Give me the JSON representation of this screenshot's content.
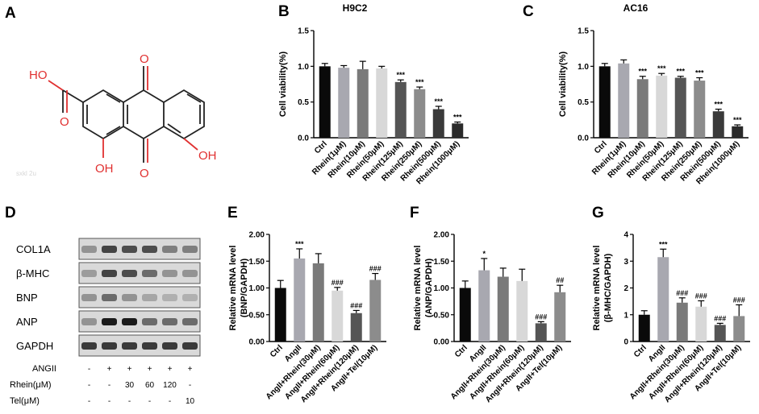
{
  "panel_letters": {
    "A": "A",
    "B": "B",
    "C": "C",
    "D": "D",
    "E": "E",
    "F": "F",
    "G": "G"
  },
  "colors": {
    "c0": "#0a0a0a",
    "c1": "#a8a8b0",
    "c2": "#7a7a7a",
    "c3": "#d8d8d8",
    "c4": "#555555",
    "c5": "#8c8c8c",
    "c6": "#3a3a3a",
    "c7": "#2a2a2a",
    "red": "#e03030",
    "bond": "#222222"
  },
  "structure": {
    "atoms": {
      "o_top": "O",
      "o_bot": "O",
      "ho_acid": "HO",
      "o_acid": "O",
      "oh_right": "OH",
      "oh_bottom": "OH"
    },
    "watermark": "sxkl 2u"
  },
  "western_blot": {
    "bands": [
      "COL1A",
      "β-MHC",
      "BNP",
      "ANP",
      "GAPDH"
    ],
    "rows": [
      {
        "label": "ANGII",
        "values": [
          "-",
          "+",
          "+",
          "+",
          "+",
          "+"
        ]
      },
      {
        "label": "Rhein(μM)",
        "values": [
          "-",
          "-",
          "30",
          "60",
          "120",
          "-"
        ]
      },
      {
        "label": "Tel(μM)",
        "values": [
          "-",
          "-",
          "-",
          "-",
          "-",
          "10"
        ]
      }
    ]
  },
  "chart_data": [
    {
      "type": "bar",
      "id": "B",
      "title": "H9C2",
      "ylabel": "Cell viability(%)",
      "ylim": [
        0,
        1.5
      ],
      "yticks": [
        0,
        0.5,
        1.0,
        1.5
      ],
      "ytick_labels": [
        "0.0",
        "0.5",
        "1.0",
        "1.5"
      ],
      "categories": [
        "Ctrl",
        "Rhein(1μM)",
        "Rhein(10μM)",
        "Rhein(50μM)",
        "Rhein(125μM)",
        "Rhein(250μM)",
        "Rhein(500μM)",
        "Rhein(1000μM)"
      ],
      "values": [
        1.0,
        0.98,
        0.96,
        0.97,
        0.78,
        0.68,
        0.4,
        0.2
      ],
      "errors": [
        0.04,
        0.03,
        0.11,
        0.03,
        0.03,
        0.03,
        0.04,
        0.02
      ],
      "significance": [
        "",
        "",
        "",
        "",
        "***",
        "***",
        "***",
        "***"
      ],
      "colors": [
        "c0",
        "c1",
        "c2",
        "c3",
        "c4",
        "c5",
        "c6",
        "c7"
      ]
    },
    {
      "type": "bar",
      "id": "C",
      "title": "AC16",
      "ylabel": "Cell viability(%)",
      "ylim": [
        0,
        1.5
      ],
      "yticks": [
        0,
        0.5,
        1.0,
        1.5
      ],
      "ytick_labels": [
        "0.0",
        "0.5",
        "1.0",
        "1.5"
      ],
      "categories": [
        "Ctrl",
        "Rhein(1μM)",
        "Rhein(10μM)",
        "Rhein(50μM)",
        "Rhein(125μM)",
        "Rhein(250μM)",
        "Rhein(500μM)",
        "Rhein(1000μM)"
      ],
      "values": [
        1.0,
        1.04,
        0.82,
        0.87,
        0.84,
        0.8,
        0.37,
        0.16
      ],
      "errors": [
        0.04,
        0.05,
        0.04,
        0.03,
        0.02,
        0.04,
        0.03,
        0.02
      ],
      "significance": [
        "",
        "",
        "***",
        "***",
        "***",
        "***",
        "***",
        "***"
      ],
      "colors": [
        "c0",
        "c1",
        "c2",
        "c3",
        "c4",
        "c5",
        "c6",
        "c7"
      ]
    },
    {
      "type": "bar",
      "id": "E",
      "ylabel": [
        "Relative mRNA level",
        "(BNP/GAPDH)"
      ],
      "ylim": [
        0,
        2.0
      ],
      "yticks": [
        0,
        0.5,
        1.0,
        1.5,
        2.0
      ],
      "ytick_labels": [
        "0.00",
        "0.50",
        "1.00",
        "1.50",
        "2.00"
      ],
      "categories": [
        "Ctrl",
        "AngII",
        "AngII+Rhein(30μM)",
        "AngII+Rhein(60μM)",
        "AngII+Rhein(120μM)",
        "AngII+Tel(10μM)"
      ],
      "values": [
        1.0,
        1.55,
        1.46,
        0.95,
        0.53,
        1.15
      ],
      "errors": [
        0.14,
        0.18,
        0.18,
        0.06,
        0.05,
        0.12
      ],
      "significance": [
        "",
        "***",
        "",
        "###",
        "###",
        "###"
      ],
      "colors": [
        "c0",
        "c1",
        "c2",
        "c3",
        "c4",
        "c5"
      ]
    },
    {
      "type": "bar",
      "id": "F",
      "ylabel": [
        "Relative mRNA level",
        "(ANP/GAPDH)"
      ],
      "ylim": [
        0,
        2.0
      ],
      "yticks": [
        0,
        0.5,
        1.0,
        1.5,
        2.0
      ],
      "ytick_labels": [
        "0.00",
        "0.50",
        "1.00",
        "1.50",
        "2.00"
      ],
      "categories": [
        "Ctrl",
        "AngII",
        "AngII+Rhein(30μM)",
        "AngII+Rhein(60μM)",
        "AngII+Rhein(120μM)",
        "AngII+Tel(10μM)"
      ],
      "values": [
        1.0,
        1.33,
        1.21,
        1.13,
        0.34,
        0.92
      ],
      "errors": [
        0.13,
        0.22,
        0.16,
        0.22,
        0.03,
        0.13
      ],
      "significance": [
        "",
        "*",
        "",
        "",
        "###",
        "##"
      ],
      "colors": [
        "c0",
        "c1",
        "c2",
        "c3",
        "c4",
        "c5"
      ]
    },
    {
      "type": "bar",
      "id": "G",
      "ylabel": [
        "Relative mRNA level",
        "(β-MHC/GAPDH)"
      ],
      "ylim": [
        0,
        4
      ],
      "yticks": [
        0,
        1,
        2,
        3,
        4
      ],
      "ytick_labels": [
        "0",
        "1",
        "2",
        "3",
        "4"
      ],
      "categories": [
        "Ctrl",
        "AngII",
        "AngII+Rhein(30μM)",
        "AngII+Rhein(60μM)",
        "AngII+Rhein(120μM)",
        "AngII+Tel(10μM)"
      ],
      "values": [
        1.0,
        3.15,
        1.45,
        1.3,
        0.62,
        0.95
      ],
      "errors": [
        0.15,
        0.3,
        0.18,
        0.22,
        0.06,
        0.42
      ],
      "significance": [
        "",
        "***",
        "###",
        "###",
        "###",
        "###"
      ],
      "colors": [
        "c0",
        "c1",
        "c2",
        "c3",
        "c4",
        "c5"
      ]
    }
  ]
}
